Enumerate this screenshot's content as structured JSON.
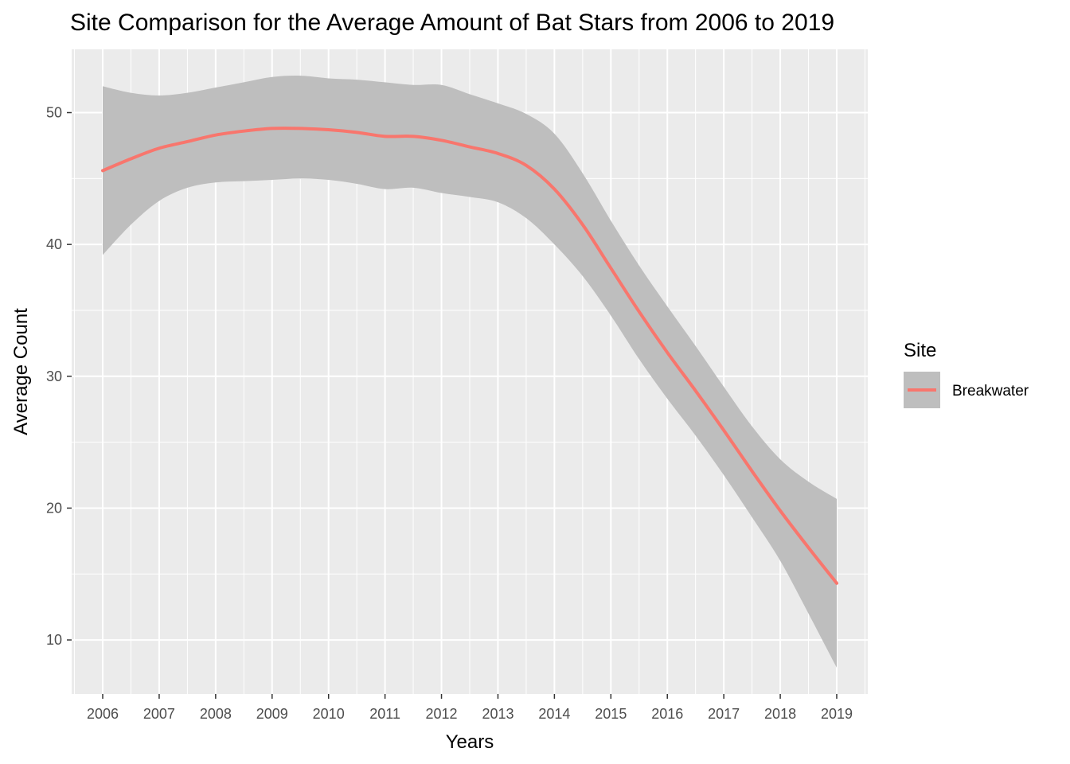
{
  "chart_data": {
    "type": "line",
    "title": "Site Comparison for the Average Amount of Bat Stars from 2006 to 2019",
    "xlabel": "Years",
    "ylabel": "Average Count",
    "xlim": [
      2005.45,
      2019.55
    ],
    "ylim": [
      5.9,
      54.8
    ],
    "x_ticks": [
      2006,
      2007,
      2008,
      2009,
      2010,
      2011,
      2012,
      2013,
      2014,
      2015,
      2016,
      2017,
      2018,
      2019
    ],
    "y_ticks": [
      10,
      20,
      30,
      40,
      50
    ],
    "grid": true,
    "legend": {
      "title": "Site",
      "position": "right"
    },
    "series": [
      {
        "name": "Breakwater",
        "color": "#F8766D",
        "x": [
          2006,
          2006.5,
          2007,
          2007.5,
          2008,
          2008.5,
          2009,
          2009.5,
          2010,
          2010.5,
          2011,
          2011.5,
          2012,
          2012.5,
          2013,
          2013.5,
          2014,
          2014.5,
          2015,
          2015.5,
          2016,
          2016.5,
          2017,
          2017.5,
          2018,
          2018.5,
          2019
        ],
        "y": [
          45.6,
          46.5,
          47.3,
          47.8,
          48.3,
          48.6,
          48.8,
          48.8,
          48.7,
          48.5,
          48.2,
          48.2,
          47.9,
          47.4,
          46.9,
          46.0,
          44.2,
          41.5,
          38.2,
          34.9,
          31.8,
          28.9,
          25.9,
          22.8,
          19.8,
          17.0,
          14.3
        ],
        "lower": [
          39.2,
          41.5,
          43.3,
          44.3,
          44.7,
          44.8,
          44.9,
          45.0,
          44.9,
          44.6,
          44.2,
          44.3,
          43.9,
          43.6,
          43.2,
          42.0,
          40.0,
          37.6,
          34.6,
          31.3,
          28.3,
          25.5,
          22.5,
          19.3,
          16.0,
          12.0,
          7.9
        ],
        "upper": [
          52.0,
          51.5,
          51.3,
          51.5,
          51.9,
          52.3,
          52.7,
          52.8,
          52.6,
          52.5,
          52.3,
          52.1,
          52.1,
          51.4,
          50.7,
          49.9,
          48.4,
          45.4,
          41.8,
          38.4,
          35.3,
          32.3,
          29.2,
          26.2,
          23.7,
          22.0,
          20.7
        ]
      }
    ]
  }
}
